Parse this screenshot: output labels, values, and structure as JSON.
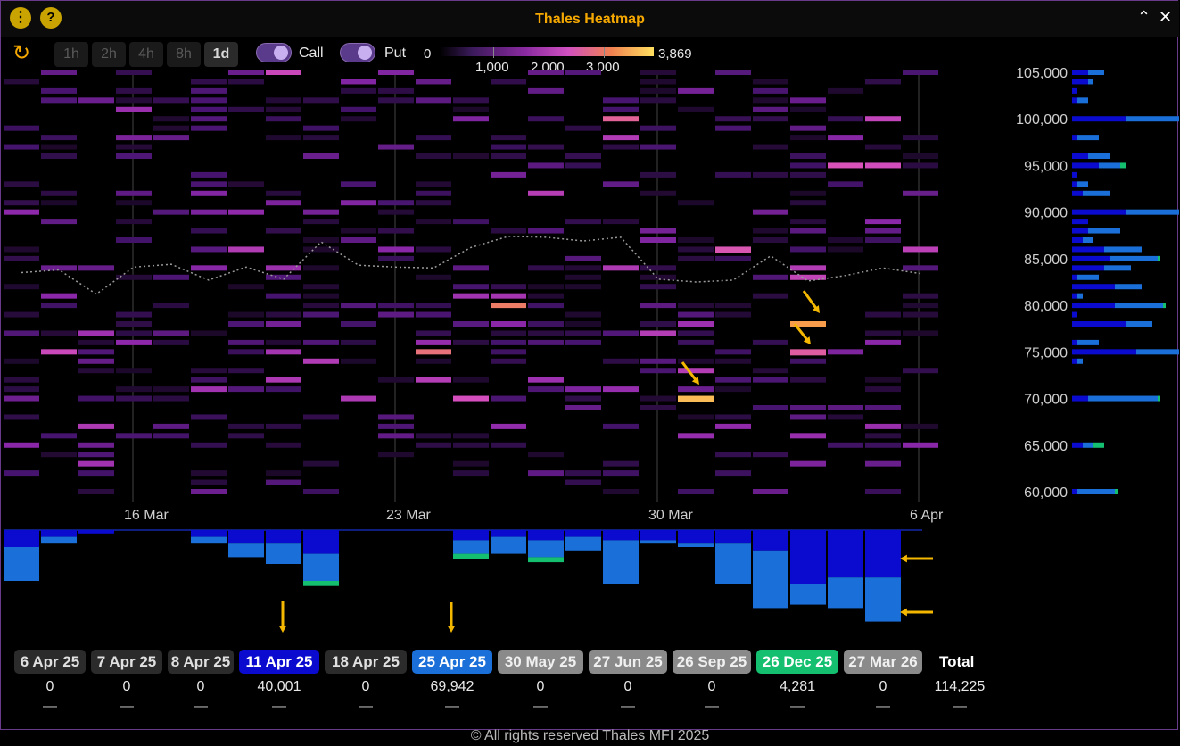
{
  "window": {
    "title": "Thales Heatmap",
    "menu_icon": "kebab-menu-icon",
    "help_icon": "help-icon",
    "collapse_icon": "chevron-up-icon",
    "close_icon": "close-icon"
  },
  "toolbar": {
    "refresh_icon": "refresh-icon",
    "timeframes": [
      {
        "label": "1h",
        "active": false
      },
      {
        "label": "2h",
        "active": false
      },
      {
        "label": "4h",
        "active": false
      },
      {
        "label": "8h",
        "active": false
      },
      {
        "label": "1d",
        "active": true
      }
    ],
    "call_label": "Call",
    "put_label": "Put",
    "call_on": true,
    "put_on": true
  },
  "color_legend": {
    "min": "0",
    "max": "3,869",
    "ticks": [
      "1,000",
      "2,000",
      "3,000"
    ],
    "max_value": 3869
  },
  "chart_data": {
    "type": "heatmap",
    "x_tick_labels": [
      "16 Mar",
      "23 Mar",
      "30 Mar",
      "6 Apr"
    ],
    "y_tick_labels": [
      "105,000",
      "100,000",
      "95,000",
      "90,000",
      "85,000",
      "80,000",
      "75,000",
      "70,000",
      "65,000",
      "60,000"
    ],
    "ylim": [
      58000,
      107000
    ],
    "price_line": [
      83500,
      83800,
      81200,
      84100,
      84400,
      82700,
      84100,
      82800,
      86800,
      84300,
      84100,
      84000,
      86200,
      87400,
      87300,
      86900,
      87300,
      82800,
      82500,
      82700,
      85300,
      82600,
      83200,
      84000,
      83400
    ],
    "hot_cells": [
      {
        "col": 18,
        "strike": 70000,
        "value": 3600
      },
      {
        "col": 21,
        "strike": 78000,
        "value": 3400
      },
      {
        "col": 21,
        "strike": 75000,
        "value": 2700
      },
      {
        "col": 19,
        "strike": 86000,
        "value": 2600
      }
    ],
    "bottom_bars": {
      "dark_blue": [
        5,
        2,
        1,
        0,
        0,
        2,
        4,
        4,
        7,
        0,
        0,
        0,
        3,
        2,
        3,
        2,
        3,
        3,
        4,
        4,
        6,
        16,
        14,
        14,
        0
      ],
      "light_blue": [
        10,
        2,
        0,
        0,
        0,
        2,
        4,
        6,
        8,
        0,
        0,
        0,
        4,
        5,
        5,
        4,
        13,
        1,
        1,
        12,
        17,
        6,
        9,
        13,
        0
      ],
      "green": [
        0,
        0,
        0,
        0,
        0,
        0,
        0,
        0,
        1,
        0,
        0,
        0,
        1,
        0,
        1,
        0,
        0,
        0,
        0,
        0,
        0,
        0,
        0,
        0,
        0
      ]
    },
    "right_profile": {
      "strikes": [
        105000,
        104000,
        103000,
        102000,
        100000,
        98000,
        96000,
        95000,
        94000,
        93000,
        92000,
        90000,
        89000,
        88000,
        87000,
        86000,
        85000,
        84000,
        83000,
        82000,
        81000,
        80000,
        79000,
        78000,
        76000,
        75000,
        74000,
        70000,
        65000,
        60000
      ],
      "dark_blue": [
        3,
        3,
        1,
        1,
        10,
        1,
        3,
        5,
        1,
        1,
        2,
        10,
        3,
        3,
        2,
        6,
        7,
        6,
        1,
        8,
        1,
        8,
        1,
        10,
        1,
        12,
        1,
        3,
        2,
        1
      ],
      "light_blue": [
        3,
        1,
        0,
        2,
        18,
        4,
        4,
        4,
        0,
        2,
        5,
        10,
        0,
        6,
        2,
        7,
        9,
        5,
        4,
        5,
        1,
        9,
        0,
        5,
        4,
        9,
        1,
        13,
        2,
        7
      ],
      "green": [
        0,
        0,
        0,
        0,
        0.5,
        0,
        0,
        1,
        0,
        0,
        0,
        2,
        0,
        0,
        0,
        0,
        0.5,
        0,
        0,
        0,
        0,
        0.5,
        0,
        0,
        0,
        0,
        0,
        0.5,
        2,
        0.5
      ]
    }
  },
  "expiries": [
    {
      "label": "6 Apr 25",
      "value": "0",
      "dash": "—",
      "bg": "#2b2b2b",
      "fg": "#e0e0e0"
    },
    {
      "label": "7 Apr 25",
      "value": "0",
      "dash": "—",
      "bg": "#2b2b2b",
      "fg": "#e0e0e0"
    },
    {
      "label": "8 Apr 25",
      "value": "0",
      "dash": "—",
      "bg": "#2b2b2b",
      "fg": "#e0e0e0"
    },
    {
      "label": "11 Apr 25",
      "value": "40,001",
      "dash": "—",
      "bg": "#0b0bd0",
      "fg": "#ffffff"
    },
    {
      "label": "18 Apr 25",
      "value": "0",
      "dash": "—",
      "bg": "#2b2b2b",
      "fg": "#e0e0e0"
    },
    {
      "label": "25 Apr 25",
      "value": "69,942",
      "dash": "—",
      "bg": "#1a6fd8",
      "fg": "#ffffff"
    },
    {
      "label": "30 May 25",
      "value": "0",
      "dash": "—",
      "bg": "#8a8a8a",
      "fg": "#f0f0f0"
    },
    {
      "label": "27 Jun 25",
      "value": "0",
      "dash": "—",
      "bg": "#8a8a8a",
      "fg": "#f0f0f0"
    },
    {
      "label": "26 Sep 25",
      "value": "0",
      "dash": "—",
      "bg": "#8a8a8a",
      "fg": "#f0f0f0"
    },
    {
      "label": "26 Dec 25",
      "value": "4,281",
      "dash": "—",
      "bg": "#14c070",
      "fg": "#ffffff"
    },
    {
      "label": "27 Mar 26",
      "value": "0",
      "dash": "—",
      "bg": "#8a8a8a",
      "fg": "#f0f0f0"
    }
  ],
  "total": {
    "label": "Total",
    "value": "114,225",
    "dash": "—"
  },
  "footer": "© All rights reserved Thales MFI 2025",
  "colors": {
    "accent": "#f5a800",
    "dark_blue": "#0b0bd0",
    "light_blue": "#1a6fd8",
    "green": "#14c070"
  }
}
